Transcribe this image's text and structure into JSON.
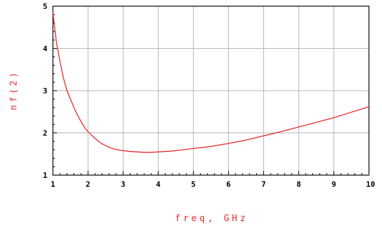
{
  "chart_data": {
    "type": "line",
    "xlabel": "freq, GHz",
    "ylabel": "nf(2)",
    "xlim": [
      1,
      10
    ],
    "ylim": [
      1,
      5
    ],
    "xticks": [
      "1",
      "2",
      "3",
      "4",
      "5",
      "6",
      "7",
      "8",
      "9",
      "10"
    ],
    "yticks": [
      "1",
      "2",
      "3",
      "4",
      "5"
    ],
    "grid": true,
    "series": [
      {
        "x": [
          1.0,
          1.05,
          1.1,
          1.2,
          1.3,
          1.4,
          1.5,
          1.6,
          1.7,
          1.8,
          1.9,
          2.0,
          2.1,
          2.2,
          2.3,
          2.4,
          2.5,
          2.6,
          2.7,
          2.8,
          2.9,
          3.0,
          3.2,
          3.4,
          3.6,
          3.8,
          4.0,
          4.2,
          4.4,
          4.6,
          4.8,
          5.0,
          5.5,
          6.0,
          6.5,
          7.0,
          7.5,
          8.0,
          8.5,
          9.0,
          9.5,
          10.0
        ],
        "y": [
          4.85,
          4.5,
          4.15,
          3.7,
          3.3,
          3.0,
          2.8,
          2.6,
          2.42,
          2.27,
          2.13,
          2.03,
          1.95,
          1.87,
          1.8,
          1.74,
          1.7,
          1.66,
          1.63,
          1.61,
          1.59,
          1.58,
          1.56,
          1.55,
          1.54,
          1.54,
          1.55,
          1.56,
          1.57,
          1.59,
          1.61,
          1.63,
          1.68,
          1.75,
          1.83,
          1.93,
          2.03,
          2.14,
          2.25,
          2.36,
          2.49,
          2.62
        ]
      }
    ]
  },
  "colors": {
    "curve": "#e8272c",
    "axis_title": "#e8272c",
    "grid": "#b4b4b4",
    "frame": "#000000"
  }
}
